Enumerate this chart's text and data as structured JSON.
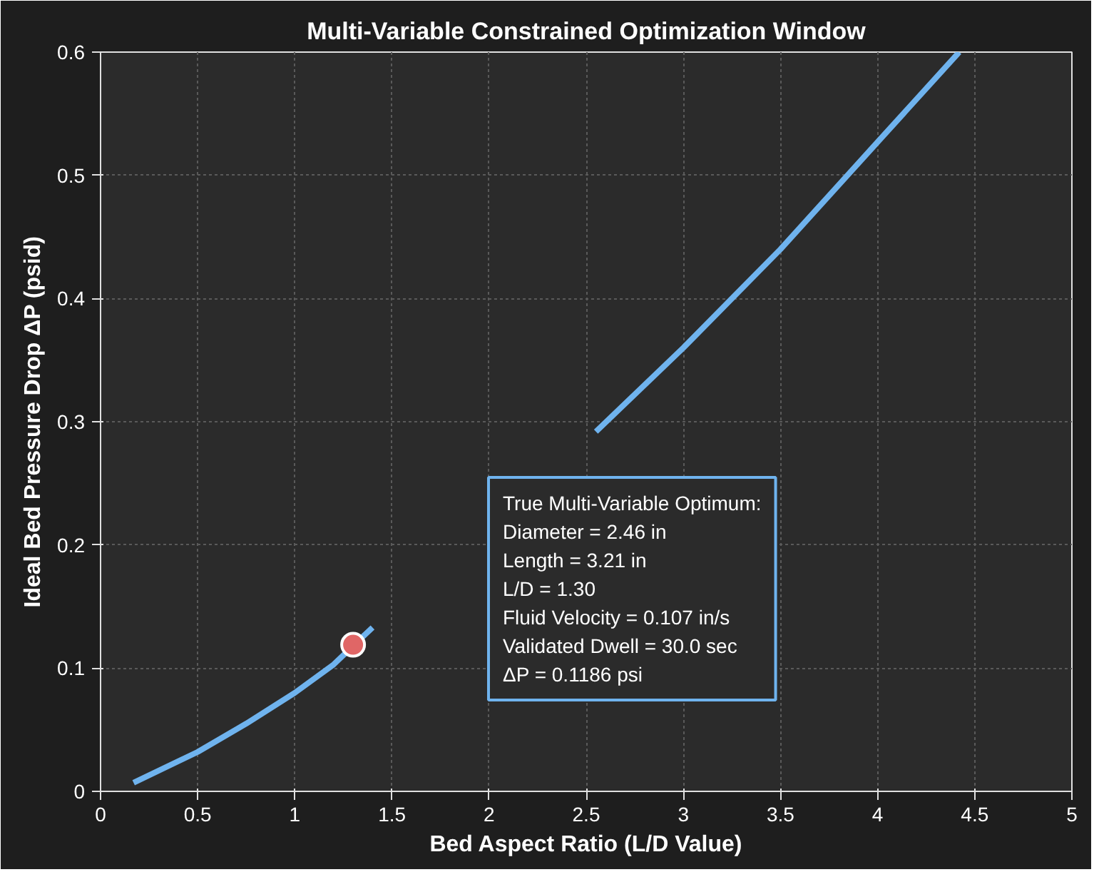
{
  "chart_data": {
    "type": "line",
    "title": "Multi-Variable Constrained Optimization Window",
    "xlabel": "Bed Aspect Ratio (L/D Value)",
    "ylabel": "Ideal Bed Pressure Drop ΔP (psid)",
    "xlim": [
      0,
      5
    ],
    "ylim": [
      0,
      0.6
    ],
    "xticks": [
      0,
      0.5,
      1,
      1.5,
      2,
      2.5,
      3,
      3.5,
      4,
      4.5,
      5
    ],
    "yticks": [
      0,
      0.1,
      0.2,
      0.3,
      0.4,
      0.5,
      0.6
    ],
    "grid": true,
    "series": [
      {
        "color": "#6fb3ee",
        "x": [
          0.17,
          0.5,
          0.75,
          1.0,
          1.2,
          1.4,
          2.0,
          2.55,
          3.0,
          3.5,
          4.0,
          4.42
        ],
        "values": [
          0.007,
          0.032,
          0.055,
          0.08,
          0.103,
          0.133,
          null,
          0.292,
          0.36,
          0.44,
          0.527,
          0.6
        ]
      },
      {
        "type": "scatter",
        "color": "#e06666",
        "marker": "circle",
        "x": [
          1.3
        ],
        "values": [
          0.119
        ]
      }
    ],
    "annotations": [
      "True Multi-Variable Optimum:\n  Diameter = 2.46 in\n  Length = 3.21 in\n  L/D = 1.30\n  Fluid Velocity = 0.107 in/s\n  Validated Dwell = 30.0 sec\n  ΔP = 0.1186 psi"
    ]
  }
}
